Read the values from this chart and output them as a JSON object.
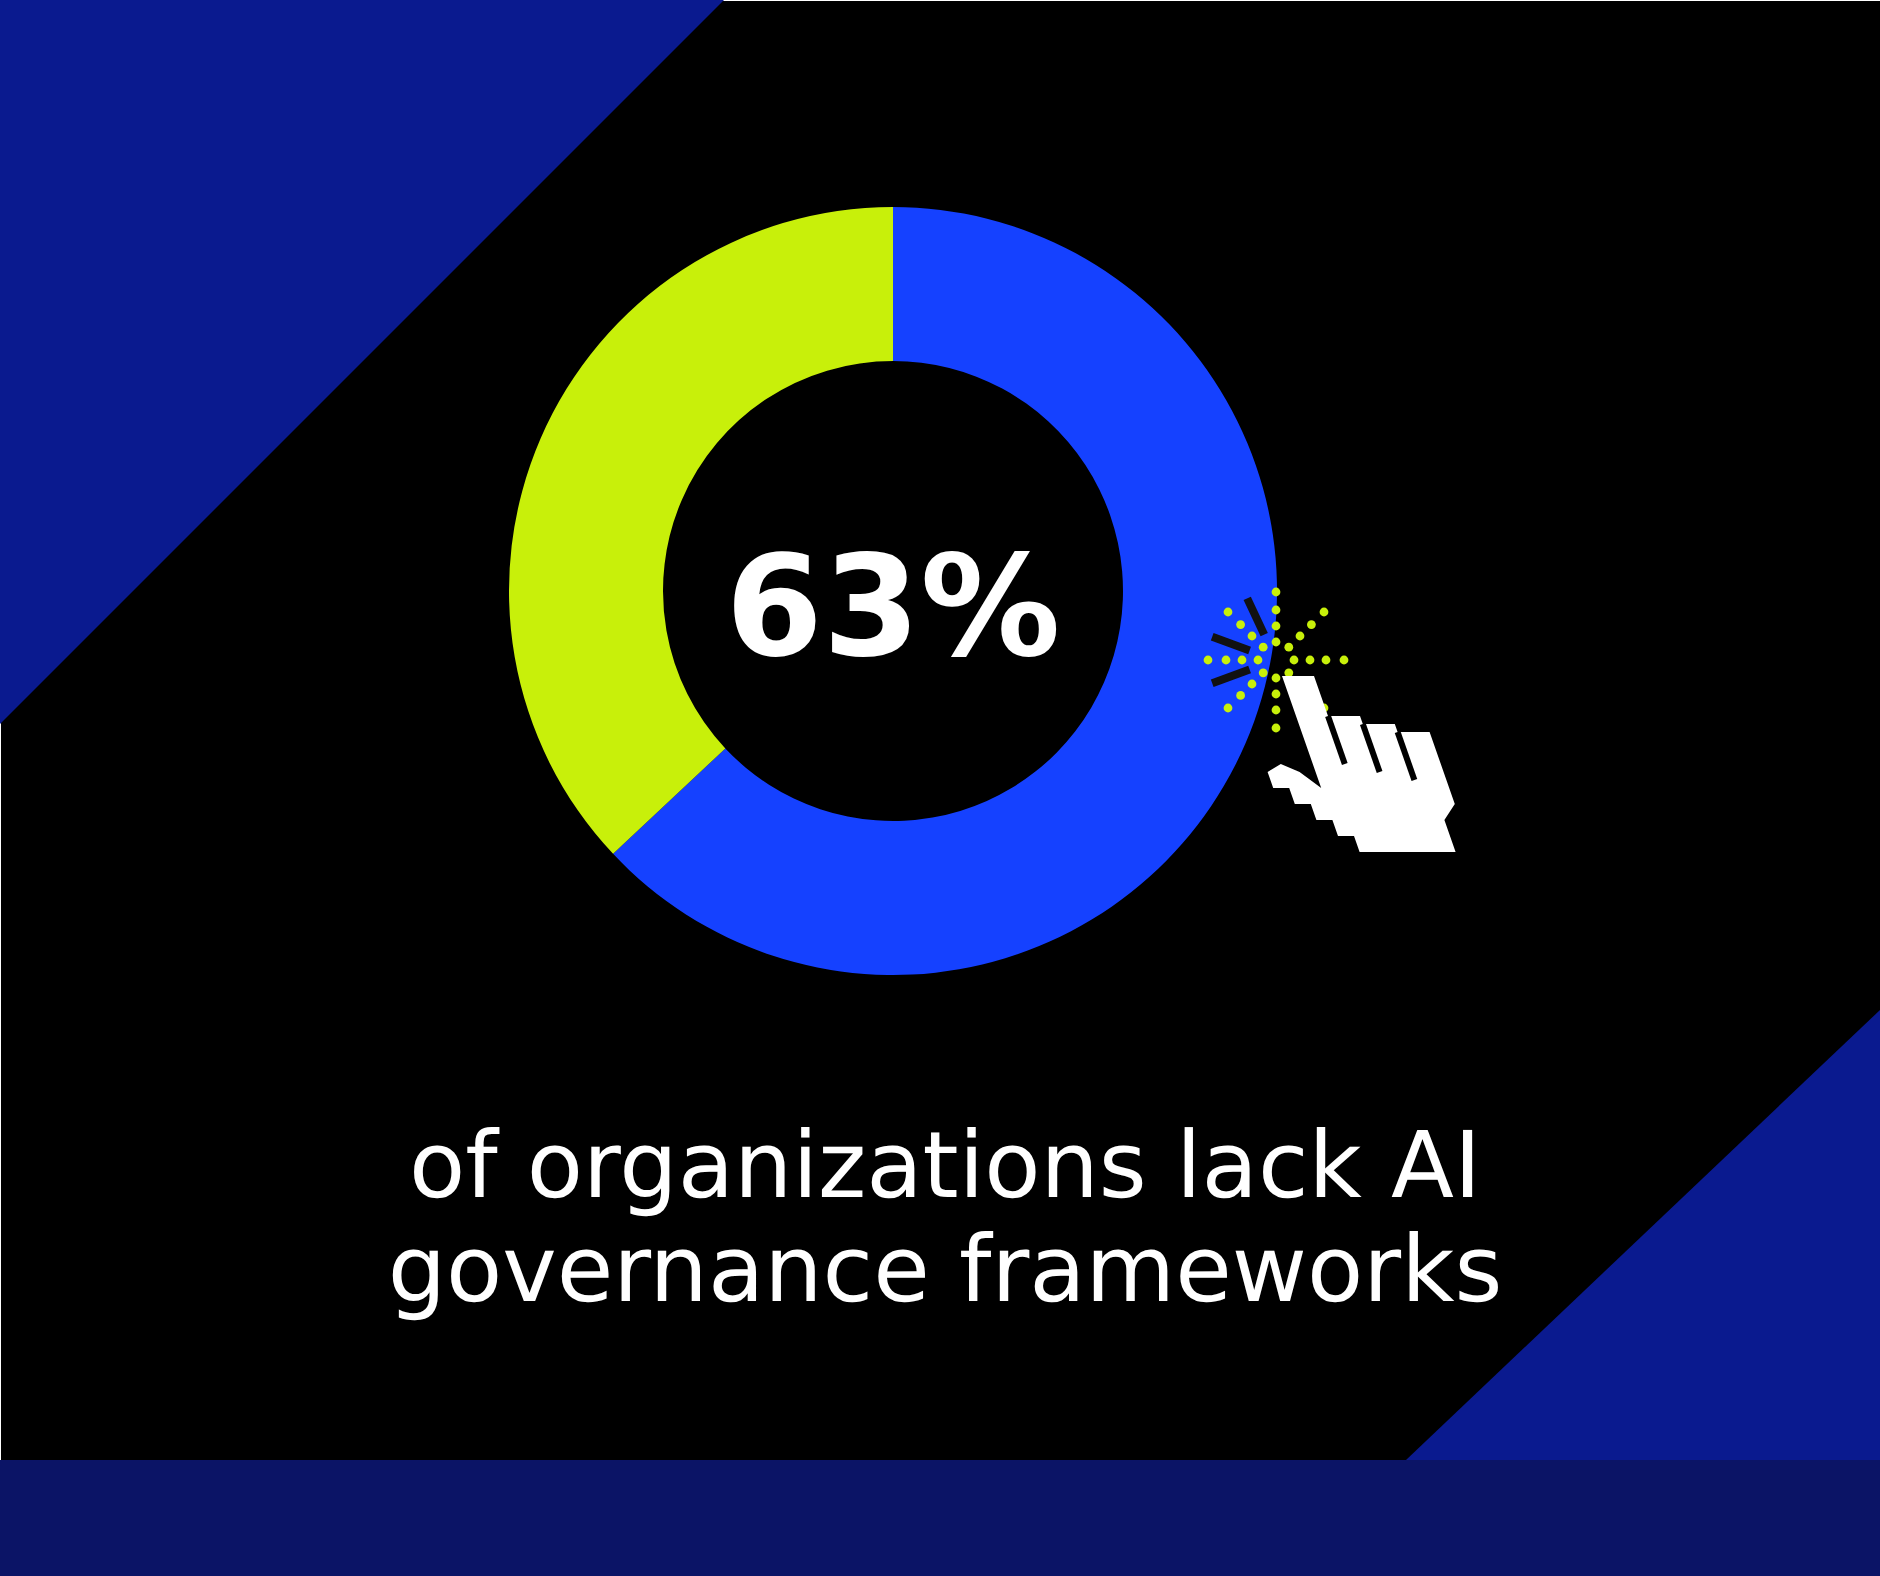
{
  "chart_data": {
    "type": "donut",
    "categories": [
      null,
      null
    ],
    "values": [
      63,
      37
    ],
    "colors": [
      "#1541ff",
      "#c8f00a"
    ],
    "value_labels": [
      "63%",
      null
    ],
    "annotations": [
      "of organizations lack AI governance frameworks"
    ]
  }
}
